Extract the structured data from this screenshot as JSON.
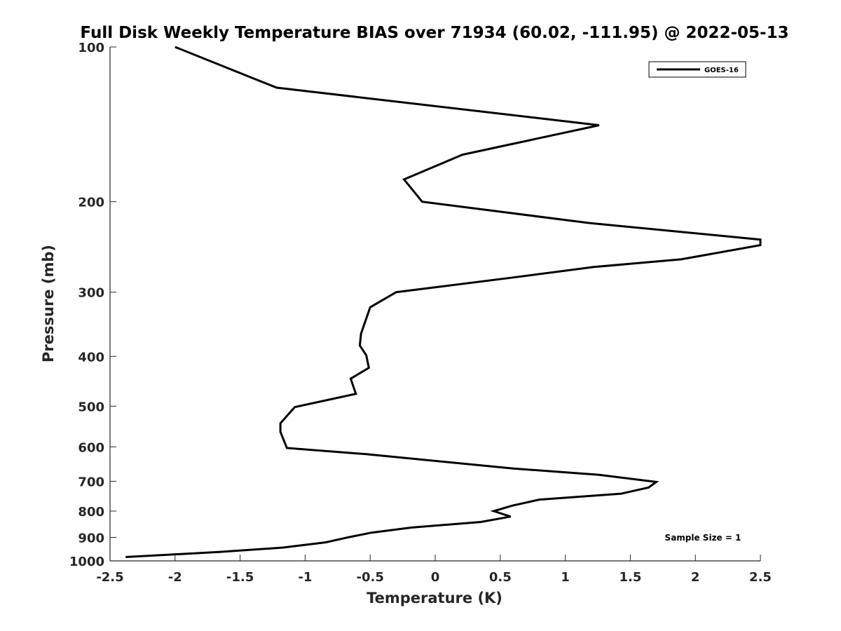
{
  "chart_data": {
    "type": "line",
    "title": "Full Disk Weekly Temperature BIAS over 71934 (60.02, -111.95) @ 2022-05-13",
    "xlabel": "Temperature (K)",
    "ylabel": "Pressure (mb)",
    "xlim": [
      -2.5,
      2.5
    ],
    "ylim": [
      100,
      1000
    ],
    "y_scale": "log",
    "y_reversed": true,
    "x_ticks": [
      -2.5,
      -2,
      -1.5,
      -1,
      -0.5,
      0,
      0.5,
      1,
      1.5,
      2,
      2.5
    ],
    "x_tick_labels": [
      "-2.5",
      "-2",
      "-1.5",
      "-1",
      "-0.5",
      "0",
      "0.5",
      "1",
      "1.5",
      "2",
      "2.5"
    ],
    "y_ticks": [
      100,
      200,
      300,
      400,
      500,
      600,
      700,
      800,
      900,
      1000
    ],
    "y_tick_labels": [
      "100",
      "200",
      "300",
      "400",
      "500",
      "600",
      "700",
      "800",
      "900",
      "1000"
    ],
    "grid": false,
    "legend_position": "top-right",
    "annotation": "Sample Size = 1",
    "line_color": "#000000",
    "series": [
      {
        "name": "GOES-16",
        "points": [
          {
            "x": -2.0,
            "y": 100
          },
          {
            "x": -1.22,
            "y": 120
          },
          {
            "x": 1.26,
            "y": 142
          },
          {
            "x": 0.21,
            "y": 162
          },
          {
            "x": -0.24,
            "y": 181
          },
          {
            "x": -0.1,
            "y": 200
          },
          {
            "x": 1.18,
            "y": 220
          },
          {
            "x": 2.5,
            "y": 237
          },
          {
            "x": 2.5,
            "y": 243
          },
          {
            "x": 1.89,
            "y": 259
          },
          {
            "x": 1.22,
            "y": 268
          },
          {
            "x": 0.64,
            "y": 280
          },
          {
            "x": -0.3,
            "y": 300
          },
          {
            "x": -0.5,
            "y": 321
          },
          {
            "x": -0.57,
            "y": 361
          },
          {
            "x": -0.58,
            "y": 381
          },
          {
            "x": -0.53,
            "y": 398
          },
          {
            "x": -0.51,
            "y": 421
          },
          {
            "x": -0.65,
            "y": 442
          },
          {
            "x": -0.61,
            "y": 473
          },
          {
            "x": -1.08,
            "y": 502
          },
          {
            "x": -1.19,
            "y": 540
          },
          {
            "x": -1.19,
            "y": 561
          },
          {
            "x": -1.14,
            "y": 603
          },
          {
            "x": -0.53,
            "y": 620
          },
          {
            "x": 0.6,
            "y": 661
          },
          {
            "x": 1.26,
            "y": 680
          },
          {
            "x": 1.7,
            "y": 702
          },
          {
            "x": 1.64,
            "y": 720
          },
          {
            "x": 1.43,
            "y": 740
          },
          {
            "x": 0.8,
            "y": 760
          },
          {
            "x": 0.59,
            "y": 781
          },
          {
            "x": 0.45,
            "y": 800
          },
          {
            "x": 0.58,
            "y": 820
          },
          {
            "x": 0.35,
            "y": 840
          },
          {
            "x": -0.18,
            "y": 861
          },
          {
            "x": -0.49,
            "y": 881
          },
          {
            "x": -0.68,
            "y": 901
          },
          {
            "x": -0.84,
            "y": 920
          },
          {
            "x": -1.17,
            "y": 942
          },
          {
            "x": -1.66,
            "y": 961
          },
          {
            "x": -2.38,
            "y": 983
          }
        ]
      }
    ]
  }
}
